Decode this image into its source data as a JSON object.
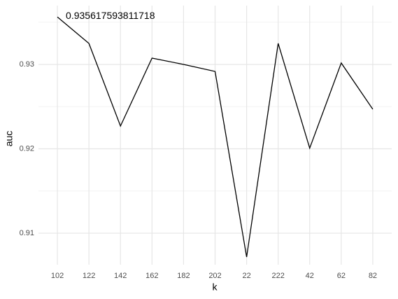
{
  "chart_data": {
    "type": "line",
    "x_label": "k",
    "y_label": "auc",
    "annotation": "0.935617593811718",
    "categories": [
      "102",
      "122",
      "142",
      "162",
      "182",
      "202",
      "22",
      "222",
      "42",
      "62",
      "82"
    ],
    "values": [
      0.93562,
      0.93249,
      0.9227,
      0.93075,
      0.93,
      0.92917,
      0.90718,
      0.93249,
      0.92008,
      0.93017,
      0.92469
    ],
    "color": "#000000",
    "ylim": [
      0.90627,
      0.93697
    ],
    "yticks": [
      0.91,
      0.92,
      0.93
    ],
    "minor_yticks": [
      0.915,
      0.925,
      0.935
    ],
    "grid": true
  }
}
